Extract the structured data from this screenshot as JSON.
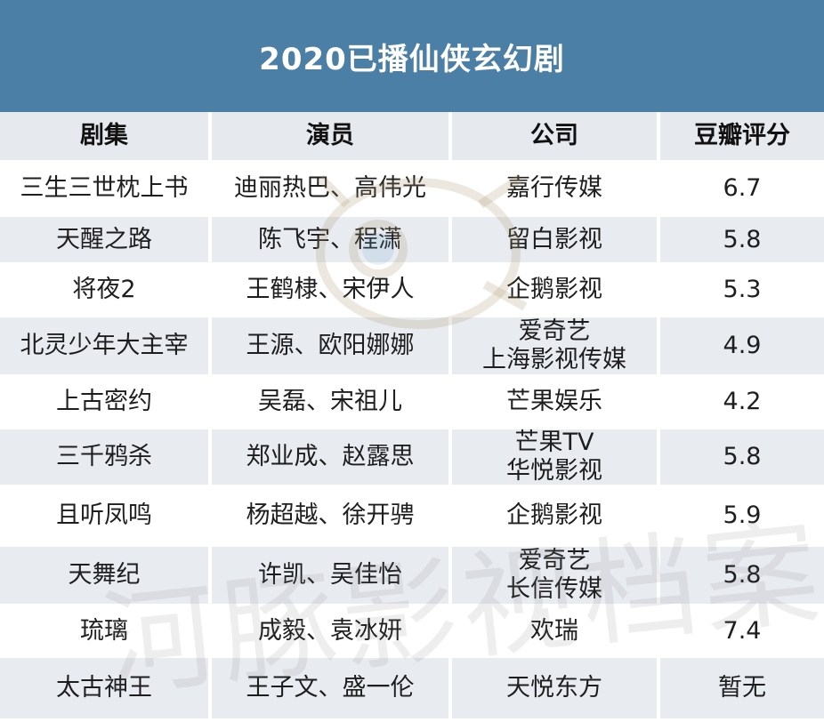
{
  "title": "2020已播仙侠玄幻剧",
  "headers": [
    "剧集",
    "演员",
    "公司",
    "豆瓣评分"
  ],
  "rows": [
    {
      "drama": "三生三世枕上书",
      "actors": "迪丽热巴、高伟光",
      "company": [
        "嘉行传媒"
      ],
      "rating": "6.7"
    },
    {
      "drama": "天醒之路",
      "actors": "陈飞宇、程潇",
      "company": [
        "留白影视"
      ],
      "rating": "5.8"
    },
    {
      "drama": "将夜2",
      "actors": "王鹤棣、宋伊人",
      "company": [
        "企鹅影视"
      ],
      "rating": "5.3"
    },
    {
      "drama": "北灵少年大主宰",
      "actors": "王源、欧阳娜娜",
      "company": [
        "爱奇艺",
        "上海影视传媒"
      ],
      "rating": "4.9"
    },
    {
      "drama": "上古密约",
      "actors": "吴磊、宋祖儿",
      "company": [
        "芒果娱乐"
      ],
      "rating": "4.2"
    },
    {
      "drama": "三千鸦杀",
      "actors": "郑业成、赵露思",
      "company": [
        "芒果TV",
        "华悦影视"
      ],
      "rating": "5.8"
    },
    {
      "drama": "且听凤鸣",
      "actors": "杨超越、徐开骋",
      "company": [
        "企鹅影视"
      ],
      "rating": "5.9"
    },
    {
      "drama": "天舞纪",
      "actors": "许凯、吴佳怡",
      "company": [
        "爱奇艺",
        "长信传媒"
      ],
      "rating": "5.8"
    },
    {
      "drama": "琉璃",
      "actors": "成毅、袁冰妍",
      "company": [
        "欢瑞"
      ],
      "rating": "7.4"
    },
    {
      "drama": "太古神王",
      "actors": "王子文、盛一伦",
      "company": [
        "天悦东方"
      ],
      "rating": "暂无"
    }
  ],
  "watermark": {
    "text": "河豚影视档案",
    "icon": "pufferfish-logo-icon"
  },
  "colors": {
    "title_bg": "#4b7fa5",
    "stripe": "#e8ebf0",
    "header_bg": "#e6e9ee"
  }
}
